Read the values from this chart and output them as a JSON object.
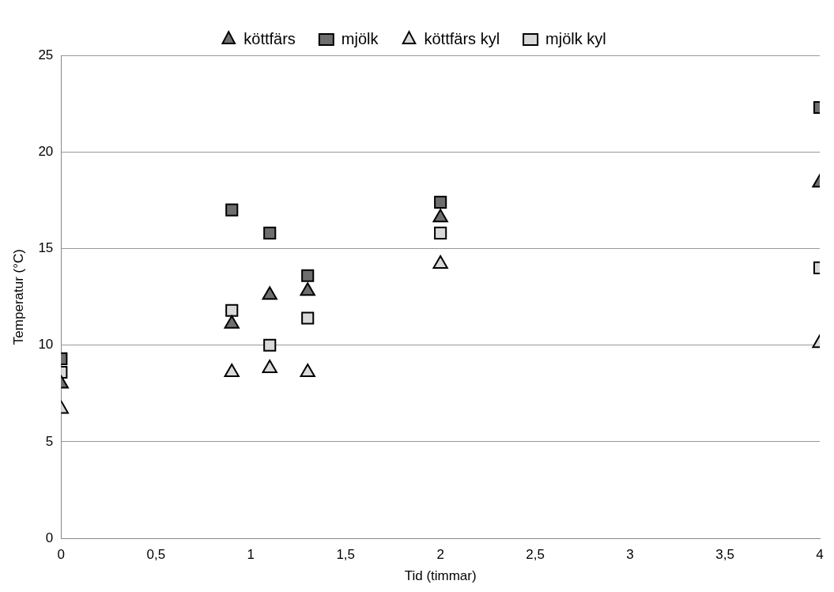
{
  "chart_data": {
    "type": "scatter",
    "xlabel": "Tid (timmar)",
    "ylabel": "Temperatur (°C)",
    "x": [
      0,
      0.9,
      1.1,
      1.3,
      2,
      4
    ],
    "series": [
      {
        "name": "köttfärs",
        "color": "#6e6e6e",
        "marker": "triangle",
        "values": [
          8.0,
          11.1,
          12.6,
          12.8,
          16.6,
          18.4
        ]
      },
      {
        "name": "mjölk",
        "color": "#6e6e6e",
        "marker": "square",
        "values": [
          9.3,
          17.0,
          15.8,
          13.6,
          17.4,
          22.3
        ]
      },
      {
        "name": "köttfärs kyl",
        "color": "#d9d9d9",
        "marker": "triangle",
        "values": [
          6.7,
          8.6,
          8.8,
          8.6,
          14.2,
          10.1
        ]
      },
      {
        "name": "mjölk kyl",
        "color": "#d9d9d9",
        "marker": "square",
        "values": [
          8.6,
          11.8,
          10.0,
          11.4,
          15.8,
          14.0
        ]
      }
    ],
    "xlim": [
      0,
      4
    ],
    "xticks": [
      {
        "value": 0,
        "label": "0"
      },
      {
        "value": 0.5,
        "label": "0,5"
      },
      {
        "value": 1,
        "label": "1"
      },
      {
        "value": 1.5,
        "label": "1,5"
      },
      {
        "value": 2,
        "label": "2"
      },
      {
        "value": 2.5,
        "label": "2,5"
      },
      {
        "value": 3,
        "label": "3"
      },
      {
        "value": 3.5,
        "label": "3,5"
      },
      {
        "value": 4,
        "label": "4"
      }
    ],
    "ylim": [
      0,
      25
    ],
    "yticks": [
      0,
      5,
      10,
      15,
      20,
      25
    ],
    "grid": "y",
    "legend": "top"
  }
}
